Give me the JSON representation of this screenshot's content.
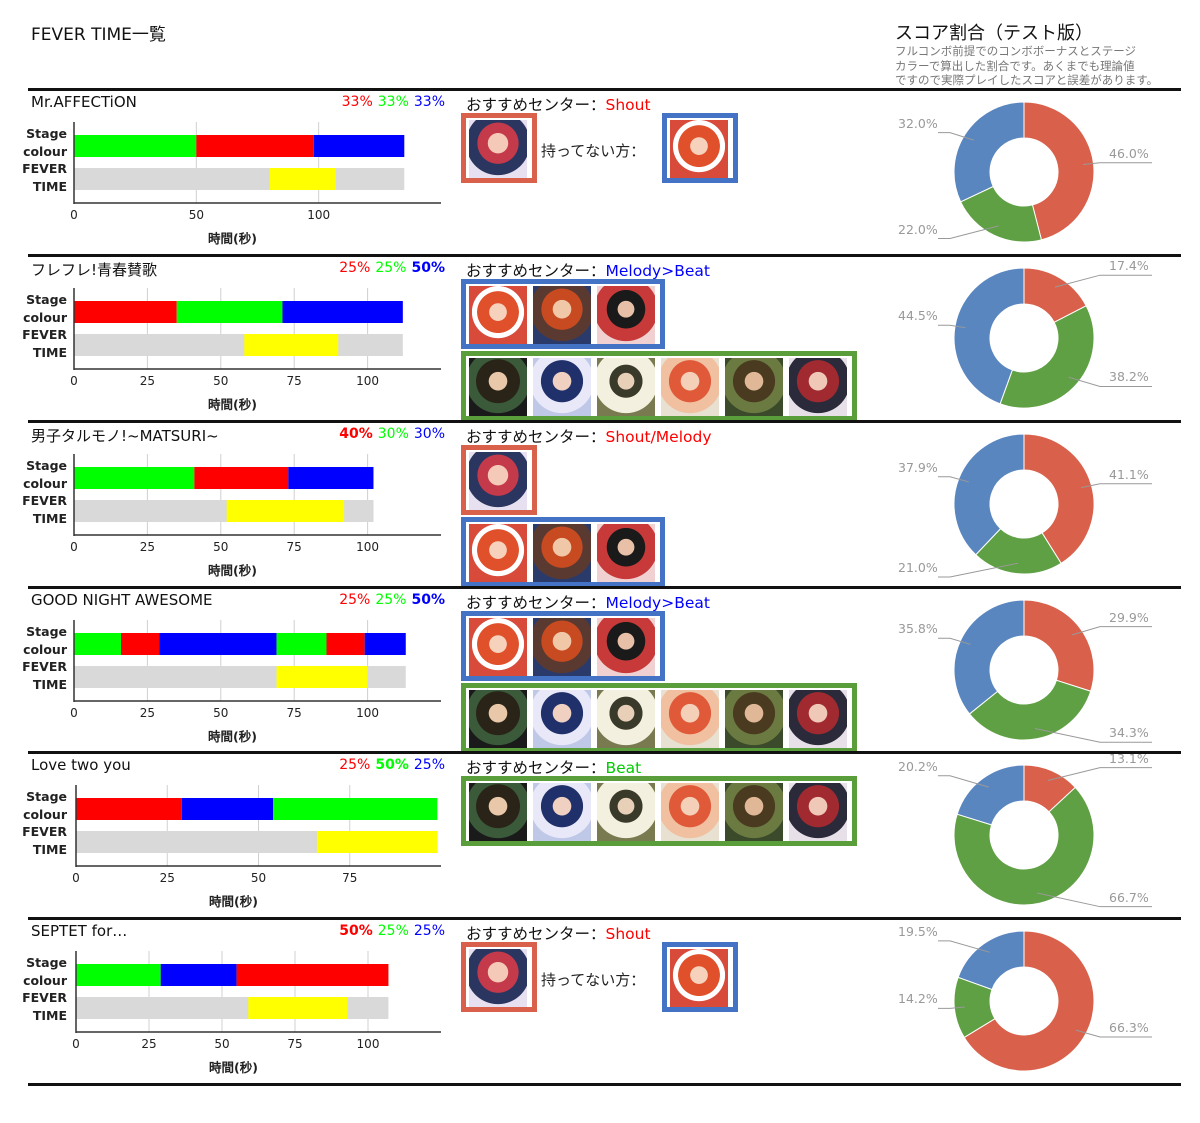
{
  "title": "FEVER TIME一覧",
  "score": {
    "title": "スコア割合（テスト版）",
    "note": [
      "フルコンボ前提でのコンボボーナスとステージ",
      "カラーで算出した割合です。あくまでも理論値",
      "ですので実際プレイしたスコアと誤差があります。"
    ]
  },
  "labels": {
    "stage": [
      "Stage",
      "colour"
    ],
    "fever": [
      "FEVER",
      "TIME"
    ],
    "xlabel": "時間(秒)",
    "recommend": "おすすめセンター：",
    "not_owned": "持ってない方："
  },
  "colors": {
    "red": "#ff0000",
    "green": "#00ff00",
    "blue": "#0000ff",
    "fever": "#ffff00",
    "track": "#d9d9d9",
    "pie_red": "#d9604a",
    "pie_green": "#5ea043",
    "pie_blue": "#5a86c0",
    "box_red": "#d9604a",
    "box_blue": "#4472c4",
    "box_green": "#5a9e3c",
    "shout": "#ff0000",
    "melody": "#0000ff",
    "beat": "#00cc00"
  },
  "chart_data": [
    {
      "type": "bar",
      "title": "Mr.AFFECTiON",
      "percents": [
        {
          "text": "33%",
          "color": "red",
          "bold": false
        },
        {
          "text": "33%",
          "color": "green",
          "bold": false
        },
        {
          "text": "33%",
          "color": "blue",
          "bold": false
        }
      ],
      "xlim": [
        0,
        150
      ],
      "ticks": [
        0,
        50,
        100
      ],
      "xlabel": "時間(秒)",
      "length": 135,
      "stage": [
        {
          "color": "green",
          "from": 0,
          "to": 50
        },
        {
          "color": "red",
          "from": 50,
          "to": 98
        },
        {
          "color": "blue",
          "from": 98,
          "to": 135
        }
      ],
      "fever": [
        80,
        107
      ],
      "recommend": {
        "text": "Shout",
        "color": "shout",
        "groups": [
          {
            "box": "box_red",
            "thumbs": [
              "a"
            ]
          }
        ],
        "not_owned": {
          "box": "box_blue",
          "thumbs": [
            "b"
          ]
        }
      },
      "pie": {
        "values": [
          46.0,
          22.0,
          32.0
        ],
        "labels": [
          "46.0%",
          "22.0%",
          "32.0%"
        ]
      }
    },
    {
      "type": "bar",
      "title": "フレフレ!青春賛歌",
      "percents": [
        {
          "text": "25%",
          "color": "red",
          "bold": false
        },
        {
          "text": "25%",
          "color": "green",
          "bold": false
        },
        {
          "text": "50%",
          "color": "blue",
          "bold": true
        }
      ],
      "xlim": [
        0,
        125
      ],
      "ticks": [
        0,
        25,
        50,
        75,
        100
      ],
      "xlabel": "時間(秒)",
      "length": 112,
      "stage": [
        {
          "color": "red",
          "from": 0,
          "to": 35
        },
        {
          "color": "green",
          "from": 35,
          "to": 71
        },
        {
          "color": "blue",
          "from": 71,
          "to": 112
        }
      ],
      "fever": [
        58,
        90
      ],
      "recommend": {
        "text": "Melody>Beat",
        "color": "melody",
        "groups": [
          {
            "box": "box_blue",
            "thumbs": [
              "b",
              "c",
              "d"
            ]
          },
          {
            "box": "box_green",
            "thumbs": [
              "e",
              "f",
              "g",
              "h",
              "i",
              "j"
            ]
          }
        ]
      },
      "pie": {
        "values": [
          17.4,
          38.2,
          44.5
        ],
        "labels": [
          "17.4%",
          "38.2%",
          "44.5%"
        ]
      }
    },
    {
      "type": "bar",
      "title": "男子タルモノ!~MATSURI~",
      "percents": [
        {
          "text": "40%",
          "color": "red",
          "bold": true
        },
        {
          "text": "30%",
          "color": "green",
          "bold": false
        },
        {
          "text": "30%",
          "color": "blue",
          "bold": false
        }
      ],
      "xlim": [
        0,
        125
      ],
      "ticks": [
        0,
        25,
        50,
        75,
        100
      ],
      "xlabel": "時間(秒)",
      "length": 102,
      "stage": [
        {
          "color": "green",
          "from": 0,
          "to": 41
        },
        {
          "color": "red",
          "from": 41,
          "to": 73
        },
        {
          "color": "blue",
          "from": 73,
          "to": 102
        }
      ],
      "fever": [
        52,
        92
      ],
      "recommend": {
        "text": "Shout/Melody",
        "color": "shout",
        "groups": [
          {
            "box": "box_red",
            "thumbs": [
              "a"
            ]
          },
          {
            "box": "box_blue",
            "thumbs": [
              "b",
              "c",
              "d"
            ]
          }
        ]
      },
      "pie": {
        "values": [
          41.1,
          21.0,
          37.9
        ],
        "labels": [
          "41.1%",
          "21.0%",
          "37.9%"
        ]
      }
    },
    {
      "type": "bar",
      "title": "GOOD NIGHT AWESOME",
      "percents": [
        {
          "text": "25%",
          "color": "red",
          "bold": false
        },
        {
          "text": "25%",
          "color": "green",
          "bold": false
        },
        {
          "text": "50%",
          "color": "blue",
          "bold": true
        }
      ],
      "xlim": [
        0,
        125
      ],
      "ticks": [
        0,
        25,
        50,
        75,
        100
      ],
      "xlabel": "時間(秒)",
      "length": 113,
      "stage": [
        {
          "color": "green",
          "from": 0,
          "to": 16
        },
        {
          "color": "red",
          "from": 16,
          "to": 29
        },
        {
          "color": "blue",
          "from": 29,
          "to": 69
        },
        {
          "color": "green",
          "from": 69,
          "to": 86
        },
        {
          "color": "red",
          "from": 86,
          "to": 99
        },
        {
          "color": "blue",
          "from": 99,
          "to": 113
        }
      ],
      "fever": [
        69,
        100
      ],
      "recommend": {
        "text": "Melody>Beat",
        "color": "melody",
        "groups": [
          {
            "box": "box_blue",
            "thumbs": [
              "b",
              "c",
              "d"
            ]
          },
          {
            "box": "box_green",
            "thumbs": [
              "e",
              "f",
              "g",
              "h",
              "i",
              "j"
            ]
          }
        ]
      },
      "pie": {
        "values": [
          29.9,
          34.3,
          35.8
        ],
        "labels": [
          "29.9%",
          "34.3%",
          "35.8%"
        ]
      }
    },
    {
      "type": "bar",
      "title": "Love two you",
      "percents": [
        {
          "text": "25%",
          "color": "red",
          "bold": false
        },
        {
          "text": "50%",
          "color": "green",
          "bold": true
        },
        {
          "text": "25%",
          "color": "blue",
          "bold": false
        }
      ],
      "xlim": [
        0,
        100
      ],
      "ticks": [
        0,
        25,
        50,
        75
      ],
      "xlabel": "時間(秒)",
      "length": 99,
      "stage": [
        {
          "color": "red",
          "from": 0,
          "to": 29
        },
        {
          "color": "blue",
          "from": 29,
          "to": 54
        },
        {
          "color": "green",
          "from": 54,
          "to": 99
        }
      ],
      "fever": [
        66,
        99
      ],
      "recommend": {
        "text": "Beat",
        "color": "beat",
        "groups": [
          {
            "box": "box_green",
            "thumbs": [
              "e",
              "f",
              "g",
              "h",
              "i",
              "j"
            ]
          }
        ]
      },
      "pie": {
        "values": [
          13.1,
          66.7,
          20.2
        ],
        "labels": [
          "13.1%",
          "66.7%",
          "20.2%"
        ]
      }
    },
    {
      "type": "bar",
      "title": "SEPTET for…",
      "percents": [
        {
          "text": "50%",
          "color": "red",
          "bold": true
        },
        {
          "text": "25%",
          "color": "green",
          "bold": false
        },
        {
          "text": "25%",
          "color": "blue",
          "bold": false
        }
      ],
      "xlim": [
        0,
        125
      ],
      "ticks": [
        0,
        25,
        50,
        75,
        100
      ],
      "xlabel": "時間(秒)",
      "length": 107,
      "stage": [
        {
          "color": "green",
          "from": 0,
          "to": 29
        },
        {
          "color": "blue",
          "from": 29,
          "to": 55
        },
        {
          "color": "red",
          "from": 55,
          "to": 107
        }
      ],
      "fever": [
        59,
        93
      ],
      "recommend": {
        "text": "Shout",
        "color": "shout",
        "groups": [
          {
            "box": "box_red",
            "thumbs": [
              "a"
            ]
          }
        ],
        "not_owned": {
          "box": "box_blue",
          "thumbs": [
            "b"
          ]
        }
      },
      "pie": {
        "values": [
          66.3,
          14.2,
          19.5
        ],
        "labels": [
          "66.3%",
          "14.2%",
          "19.5%"
        ]
      }
    }
  ]
}
